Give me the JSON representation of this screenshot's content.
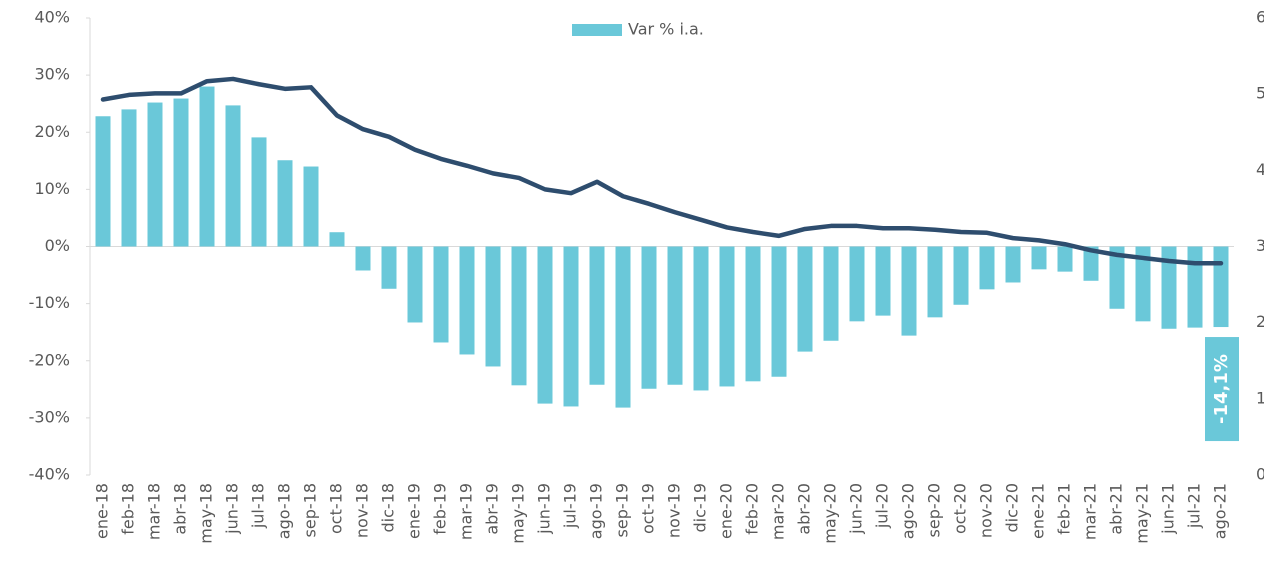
{
  "chart_data": {
    "type": "bar",
    "categories": [
      "ene-18",
      "feb-18",
      "mar-18",
      "abr-18",
      "may-18",
      "jun-18",
      "jul-18",
      "ago-18",
      "sep-18",
      "oct-18",
      "nov-18",
      "dic-18",
      "ene-19",
      "feb-19",
      "mar-19",
      "abr-19",
      "may-19",
      "jun-19",
      "jul-19",
      "ago-19",
      "sep-19",
      "oct-19",
      "nov-19",
      "dic-19",
      "ene-20",
      "feb-20",
      "mar-20",
      "abr-20",
      "may-20",
      "jun-20",
      "jul-20",
      "ago-20",
      "sep-20",
      "oct-20",
      "nov-20",
      "dic-20",
      "ene-21",
      "feb-21",
      "mar-21",
      "abr-21",
      "may-21",
      "jun-21",
      "jul-21",
      "ago-21"
    ],
    "series": [
      {
        "name": "Var % i.a.",
        "type": "bar",
        "color": "#6ac8d9",
        "values": [
          22.8,
          24.0,
          25.2,
          25.9,
          28.0,
          24.7,
          19.1,
          15.1,
          14.0,
          2.5,
          -4.2,
          -7.4,
          -13.3,
          -16.8,
          -18.9,
          -21.0,
          -24.3,
          -27.5,
          -28.0,
          -24.2,
          -28.2,
          -24.9,
          -24.2,
          -25.2,
          -24.5,
          -23.6,
          -22.8,
          -18.4,
          -16.5,
          -13.1,
          -12.1,
          -15.6,
          -12.4,
          -10.2,
          -7.5,
          -6.3,
          -4.0,
          -4.4,
          -6.0,
          -10.9,
          -13.1,
          -14.4,
          -14.2,
          -14.1
        ],
        "value_labels": [
          null,
          null,
          null,
          null,
          null,
          null,
          null,
          null,
          null,
          null,
          null,
          null,
          null,
          null,
          null,
          null,
          null,
          null,
          null,
          null,
          null,
          null,
          null,
          null,
          null,
          null,
          null,
          null,
          null,
          null,
          null,
          null,
          null,
          null,
          null,
          null,
          null,
          null,
          null,
          null,
          null,
          null,
          null,
          "-14,1%"
        ]
      },
      {
        "type": "line",
        "axis": "y2",
        "color": "#2e4d6e",
        "values": [
          4.93,
          4.99,
          5.01,
          5.01,
          5.17,
          5.2,
          5.13,
          5.07,
          5.09,
          4.72,
          4.54,
          4.44,
          4.27,
          4.15,
          4.06,
          3.96,
          3.9,
          3.75,
          3.7,
          3.85,
          3.66,
          3.56,
          3.45,
          3.35,
          3.25,
          3.19,
          3.14,
          3.23,
          3.27,
          3.27,
          3.24,
          3.24,
          3.22,
          3.19,
          3.18,
          3.11,
          3.08,
          3.03,
          2.95,
          2.89,
          2.85,
          2.81,
          2.78,
          2.78
        ]
      }
    ],
    "ylim": [
      -40,
      40
    ],
    "yticks": [
      {
        "value": -40,
        "label": "-40%"
      },
      {
        "value": -30,
        "label": "-30%"
      },
      {
        "value": -20,
        "label": "-20%"
      },
      {
        "value": -10,
        "label": "-10%"
      },
      {
        "value": 0,
        "label": "0%"
      },
      {
        "value": 10,
        "label": "10%"
      },
      {
        "value": 20,
        "label": "20%"
      },
      {
        "value": 30,
        "label": "30%"
      },
      {
        "value": 40,
        "label": "40%"
      }
    ],
    "y2lim": [
      0,
      6
    ],
    "y2ticks": [
      0,
      1,
      2,
      3,
      4,
      5,
      6
    ],
    "legend": "top"
  }
}
